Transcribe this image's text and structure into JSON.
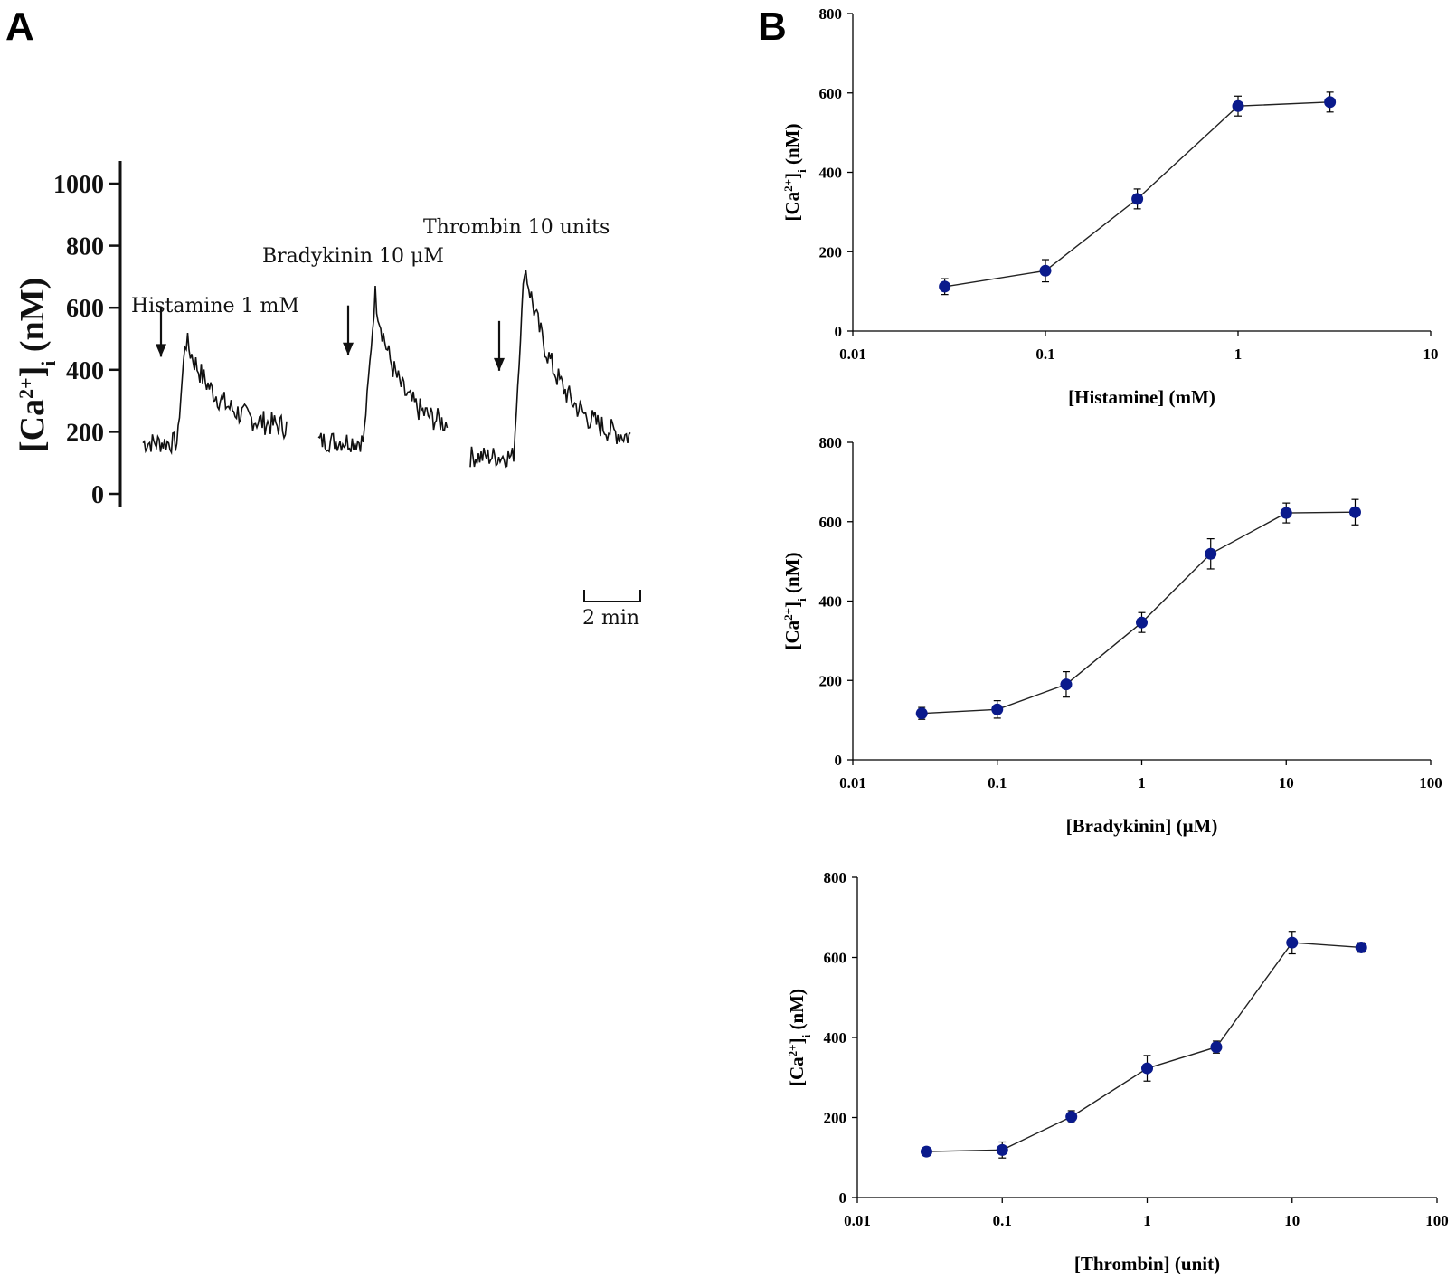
{
  "panels": {
    "a_label": "A",
    "b_label": "B"
  },
  "trace": {
    "ylabel_main": "[Ca",
    "ylabel_sup": "2+",
    "ylabel_close": "]",
    "ylabel_sub": "i",
    "ylabel_unit": " (nM)",
    "yticks": [
      0,
      200,
      400,
      600,
      800,
      1000
    ],
    "stimuli": [
      {
        "label": "Histamine 1 mM",
        "baseline": 165,
        "peak": 500
      },
      {
        "label": "Bradykinin 10 μM",
        "baseline": 170,
        "peak": 640
      },
      {
        "label": "Thrombin 10 units",
        "baseline": 120,
        "peak": 740
      }
    ],
    "scalebar": "2 min"
  },
  "chart_data": [
    {
      "type": "line",
      "title": "",
      "xlabel": "[Histamine]  (mM)",
      "ylabel": "[Ca2+]i (nM)",
      "xscale": "log",
      "xlim": [
        0.01,
        10
      ],
      "ylim": [
        0,
        800
      ],
      "xticks": [
        "0.01",
        "0.1",
        "1",
        "10"
      ],
      "yticks": [
        "0",
        "200",
        "400",
        "600",
        "800"
      ],
      "x": [
        0.03,
        0.1,
        0.3,
        1,
        3
      ],
      "y": [
        112,
        152,
        333,
        567,
        577
      ],
      "err": [
        20,
        28,
        25,
        25,
        25
      ],
      "color": "#0a1a8c"
    },
    {
      "type": "line",
      "title": "",
      "xlabel": "[Bradykinin]  (μM)",
      "ylabel": "[Ca2+]i (nM)",
      "xscale": "log",
      "xlim": [
        0.01,
        100
      ],
      "ylim": [
        0,
        800
      ],
      "xticks": [
        "0.01",
        "0.1",
        "1",
        "10",
        "100"
      ],
      "yticks": [
        "0",
        "200",
        "400",
        "600",
        "800"
      ],
      "x": [
        0.03,
        0.1,
        0.3,
        1,
        3,
        10,
        30
      ],
      "y": [
        117,
        127,
        190,
        346,
        519,
        622,
        624
      ],
      "err": [
        15,
        22,
        32,
        25,
        38,
        25,
        32
      ],
      "color": "#0a1a8c"
    },
    {
      "type": "line",
      "title": "",
      "xlabel": "[Thrombin]  (unit)",
      "ylabel": "[Ca2+]i (nM)",
      "xscale": "log",
      "xlim": [
        0.01,
        100
      ],
      "ylim": [
        0,
        800
      ],
      "xticks": [
        "0.01",
        "0.1",
        "1",
        "10",
        "100"
      ],
      "yticks": [
        "0",
        "200",
        "400",
        "600",
        "800"
      ],
      "x": [
        0.03,
        0.1,
        0.3,
        1,
        3,
        10,
        30
      ],
      "y": [
        115,
        119,
        202,
        323,
        376,
        637,
        625
      ],
      "err": [
        8,
        20,
        15,
        32,
        15,
        28,
        12
      ],
      "color": "#0a1a8c"
    }
  ]
}
